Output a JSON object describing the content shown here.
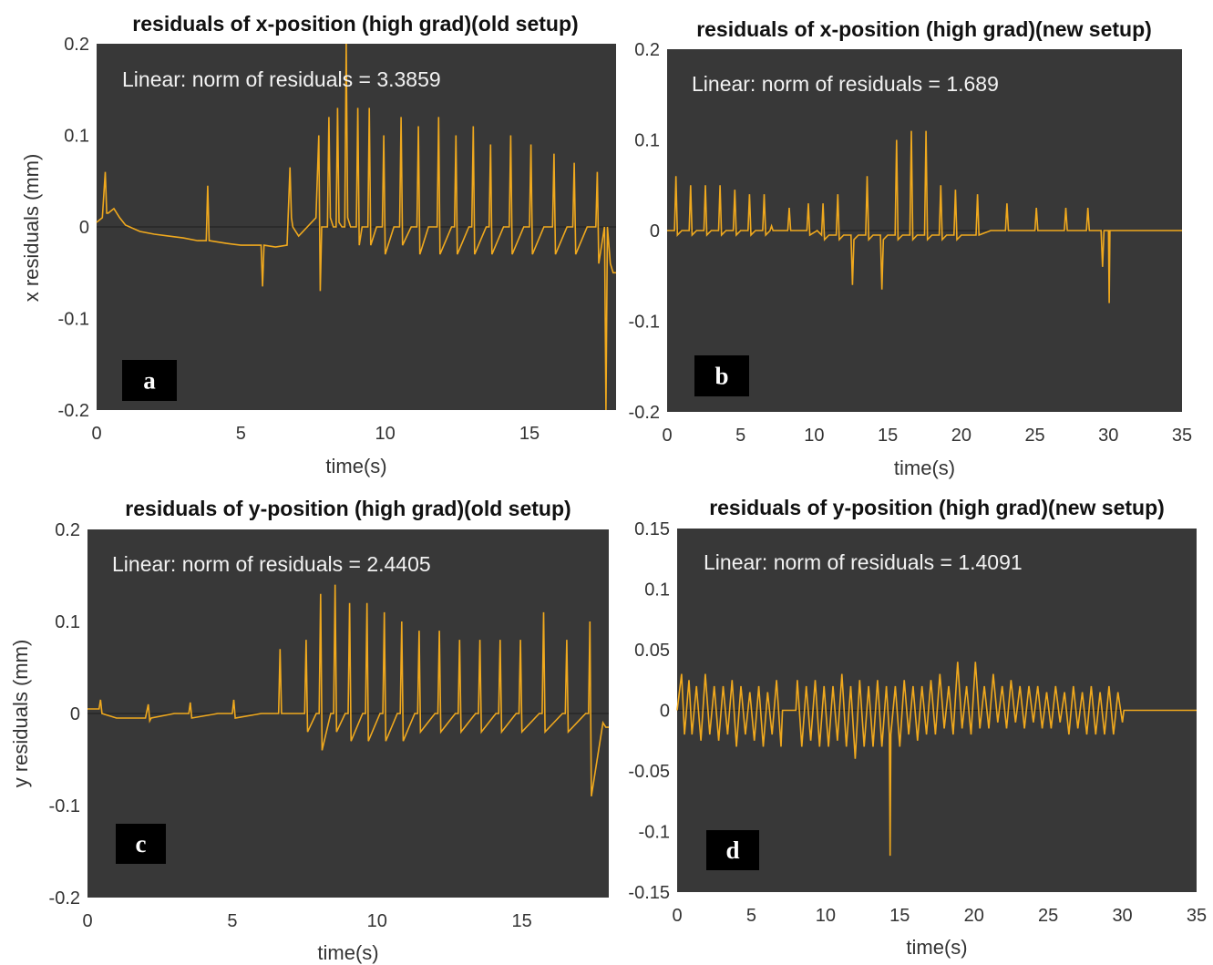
{
  "chart_data": [
    {
      "type": "line",
      "panel": "a",
      "title": "residuals of x-position (high grad)(old setup)",
      "xlabel": "time(s)",
      "ylabel": "x residuals (mm)",
      "annotation": "Linear: norm of residuals = 3.3859",
      "xlim": [
        0,
        18
      ],
      "ylim": [
        -0.2,
        0.2
      ],
      "xticks": [
        0,
        5,
        10,
        15
      ],
      "xtick_labels": [
        "0",
        "5",
        "10",
        "15"
      ],
      "yticks": [
        -0.2,
        -0.1,
        0,
        0.1,
        0.2
      ],
      "ytick_labels": [
        "-0.2",
        "-0.1",
        "0",
        "0.1",
        "0.2"
      ],
      "background": "#383838",
      "line_color": "#f0a91e",
      "series": [
        {
          "x": [
            0,
            0.2,
            0.3,
            0.35,
            0.4,
            0.6,
            0.8,
            1.0,
            1.5,
            2.0,
            2.5,
            3.0,
            3.5,
            3.8,
            3.85,
            3.9,
            4.5,
            5.0,
            5.5,
            5.7,
            5.75,
            5.8,
            6.2,
            6.6,
            6.7,
            6.75,
            6.8,
            7.0,
            7.3,
            7.6,
            7.7,
            7.75,
            7.8,
            7.9,
            8.0,
            8.05,
            8.1,
            8.2,
            8.3,
            8.35,
            8.4,
            8.5,
            8.6,
            8.65,
            8.7,
            8.8,
            9.0,
            9.05,
            9.1,
            9.2,
            9.3,
            9.4,
            9.45,
            9.5,
            9.7,
            9.9,
            9.95,
            10.0,
            10.3,
            10.5,
            10.55,
            10.6,
            10.9,
            11.1,
            11.15,
            11.2,
            11.5,
            11.8,
            11.85,
            11.9,
            12.3,
            12.4,
            12.45,
            12.5,
            12.9,
            13.0,
            13.05,
            13.1,
            13.5,
            13.6,
            13.65,
            13.7,
            14.1,
            14.3,
            14.35,
            14.4,
            14.8,
            15.0,
            15.05,
            15.1,
            15.5,
            15.8,
            15.85,
            15.9,
            16.3,
            16.5,
            16.55,
            16.6,
            17.0,
            17.3,
            17.35,
            17.4,
            17.6,
            17.65,
            17.7,
            17.8,
            17.9,
            18.0
          ],
          "y": [
            0.005,
            0.01,
            0.06,
            0.015,
            0.015,
            0.02,
            0.01,
            0.002,
            -0.005,
            -0.008,
            -0.01,
            -0.012,
            -0.015,
            -0.015,
            0.045,
            -0.015,
            -0.018,
            -0.02,
            -0.02,
            -0.02,
            -0.065,
            -0.02,
            -0.022,
            -0.02,
            0.065,
            0.01,
            0.0,
            -0.01,
            0.0,
            0.01,
            0.1,
            -0.07,
            0.0,
            0.0,
            0.0,
            0.12,
            0.01,
            0.0,
            0.0,
            0.13,
            0.005,
            0.0,
            0.0,
            0.2,
            0.01,
            0.0,
            0.0,
            0.13,
            -0.02,
            0.0,
            0.0,
            0.0,
            0.13,
            -0.02,
            0.0,
            0.0,
            0.1,
            -0.03,
            0.0,
            0.0,
            0.12,
            -0.02,
            0.0,
            0.0,
            0.11,
            -0.03,
            0.0,
            0.0,
            0.12,
            -0.03,
            0.0,
            0.0,
            0.1,
            -0.03,
            0.0,
            0.0,
            0.11,
            -0.03,
            0.0,
            0.0,
            0.09,
            -0.03,
            0.0,
            0.0,
            0.1,
            -0.03,
            0.0,
            0.0,
            0.09,
            -0.03,
            0.0,
            0.0,
            0.08,
            -0.03,
            0.0,
            0.0,
            0.07,
            -0.03,
            0.0,
            0.0,
            0.06,
            -0.04,
            0.0,
            -0.2,
            0.0,
            -0.04,
            -0.05,
            -0.05
          ]
        }
      ]
    },
    {
      "type": "line",
      "panel": "b",
      "title": "residuals of x-position (high grad)(new setup)",
      "xlabel": "time(s)",
      "ylabel": "",
      "annotation": "Linear: norm of residuals = 1.689",
      "xlim": [
        0,
        35
      ],
      "ylim": [
        -0.2,
        0.2
      ],
      "xticks": [
        0,
        5,
        10,
        15,
        20,
        25,
        30,
        35
      ],
      "xtick_labels": [
        "0",
        "5",
        "10",
        "15",
        "20",
        "25",
        "30",
        "35"
      ],
      "yticks": [
        -0.2,
        -0.1,
        0,
        0.1,
        0.2
      ],
      "ytick_labels": [
        "-0.2",
        "-0.1",
        "0",
        "0.1",
        "0.2"
      ],
      "background": "#383838",
      "line_color": "#f0a91e",
      "series": [
        {
          "x": [
            0,
            0.5,
            0.6,
            0.7,
            1.0,
            1.5,
            1.6,
            1.7,
            2.0,
            2.5,
            2.6,
            2.7,
            3.0,
            3.5,
            3.6,
            3.7,
            4.0,
            4.5,
            4.6,
            4.7,
            5.0,
            5.5,
            5.6,
            5.7,
            6.0,
            6.5,
            6.6,
            6.7,
            7.0,
            7.1,
            7.2,
            8.2,
            8.3,
            8.4,
            8.8,
            9.0,
            9.5,
            9.6,
            9.7,
            10.2,
            10.5,
            10.6,
            10.7,
            11.0,
            11.5,
            11.6,
            11.7,
            12.0,
            12.5,
            12.6,
            12.7,
            13.0,
            13.5,
            13.6,
            13.7,
            14.0,
            14.5,
            14.6,
            14.7,
            15.0,
            15.5,
            15.6,
            15.7,
            16.0,
            16.5,
            16.6,
            16.7,
            17.0,
            17.5,
            17.6,
            17.7,
            18.0,
            18.5,
            18.6,
            18.7,
            19.0,
            19.5,
            19.6,
            19.7,
            20.0,
            21.0,
            21.1,
            21.2,
            22.0,
            23.0,
            23.1,
            23.2,
            24.0,
            25.0,
            25.1,
            25.2,
            26.0,
            27.0,
            27.1,
            27.2,
            28.0,
            28.5,
            28.6,
            28.7,
            29.0,
            29.5,
            29.6,
            29.7,
            30.0,
            30.05,
            30.1,
            30.2,
            35.0
          ],
          "y": [
            0.0,
            0.0,
            0.06,
            -0.005,
            0.0,
            0.0,
            0.05,
            -0.005,
            0.0,
            0.0,
            0.05,
            -0.005,
            0.0,
            0.0,
            0.05,
            -0.005,
            0.0,
            0.0,
            0.045,
            -0.005,
            0.0,
            0.0,
            0.04,
            -0.005,
            0.0,
            0.0,
            0.04,
            -0.005,
            0.0,
            0.005,
            0.0,
            0.0,
            0.025,
            0.0,
            0.0,
            0.0,
            0.0,
            0.03,
            -0.005,
            0.0,
            -0.005,
            0.03,
            -0.01,
            -0.005,
            -0.005,
            0.04,
            -0.01,
            -0.005,
            -0.005,
            -0.06,
            -0.01,
            -0.005,
            -0.005,
            0.06,
            -0.01,
            -0.005,
            -0.005,
            -0.065,
            -0.01,
            -0.005,
            -0.005,
            0.1,
            -0.01,
            -0.005,
            -0.005,
            0.11,
            -0.01,
            -0.005,
            -0.005,
            0.11,
            -0.01,
            -0.005,
            -0.005,
            0.05,
            -0.01,
            -0.005,
            -0.005,
            0.045,
            -0.01,
            -0.005,
            -0.005,
            0.04,
            -0.005,
            0.0,
            0.0,
            0.03,
            0.0,
            0.0,
            0.0,
            0.025,
            0.0,
            0.0,
            0.0,
            0.025,
            0.0,
            0.0,
            0.0,
            0.025,
            0.0,
            0.0,
            0.0,
            -0.04,
            0.0,
            0.0,
            -0.08,
            0.0,
            0.0,
            0.0
          ]
        }
      ]
    },
    {
      "type": "line",
      "panel": "c",
      "title": "residuals of y-position (high grad)(old setup)",
      "xlabel": "time(s)",
      "ylabel": "y residuals (mm)",
      "annotation": "Linear: norm of residuals = 2.4405",
      "xlim": [
        0,
        18
      ],
      "ylim": [
        -0.2,
        0.2
      ],
      "xticks": [
        0,
        5,
        10,
        15
      ],
      "xtick_labels": [
        "0",
        "5",
        "10",
        "15"
      ],
      "yticks": [
        -0.2,
        -0.1,
        0,
        0.1,
        0.2
      ],
      "ytick_labels": [
        "-0.2",
        "-0.1",
        "0",
        "0.1",
        "0.2"
      ],
      "background": "#383838",
      "line_color": "#f0a91e",
      "series": [
        {
          "x": [
            0,
            0.4,
            0.45,
            0.5,
            1.0,
            1.5,
            2.0,
            2.1,
            2.15,
            2.2,
            3.0,
            3.5,
            3.55,
            3.6,
            4.5,
            5.0,
            5.05,
            5.1,
            6.0,
            6.5,
            6.6,
            6.65,
            6.7,
            7.2,
            7.5,
            7.55,
            7.6,
            7.9,
            8.0,
            8.05,
            8.1,
            8.4,
            8.5,
            8.55,
            8.6,
            8.9,
            9.0,
            9.05,
            9.1,
            9.5,
            9.6,
            9.65,
            9.7,
            10.1,
            10.2,
            10.25,
            10.3,
            10.7,
            10.8,
            10.85,
            10.9,
            11.3,
            11.4,
            11.45,
            11.5,
            12.0,
            12.1,
            12.15,
            12.2,
            12.7,
            12.8,
            12.85,
            12.9,
            13.4,
            13.5,
            13.55,
            13.6,
            14.1,
            14.2,
            14.25,
            14.3,
            14.8,
            14.9,
            14.95,
            15.0,
            15.6,
            15.7,
            15.75,
            15.8,
            16.4,
            16.5,
            16.55,
            16.6,
            17.2,
            17.3,
            17.35,
            17.4,
            17.8,
            17.9,
            18.0
          ],
          "y": [
            0.005,
            0.005,
            0.015,
            0.0,
            -0.005,
            -0.005,
            -0.005,
            0.01,
            -0.008,
            -0.005,
            0.0,
            0.0,
            0.012,
            -0.005,
            0.0,
            0.0,
            0.015,
            -0.005,
            0.0,
            0.0,
            0.0,
            0.07,
            0.0,
            0.0,
            0.0,
            0.08,
            -0.02,
            0.0,
            0.0,
            0.13,
            -0.04,
            0.0,
            0.0,
            0.14,
            -0.02,
            0.0,
            0.0,
            0.12,
            -0.03,
            0.0,
            0.0,
            0.12,
            -0.03,
            0.0,
            0.0,
            0.11,
            -0.03,
            0.0,
            0.0,
            0.1,
            -0.03,
            0.0,
            0.0,
            0.09,
            -0.02,
            0.0,
            0.0,
            0.09,
            -0.02,
            0.0,
            0.0,
            0.08,
            -0.02,
            0.0,
            0.0,
            0.08,
            -0.02,
            0.0,
            0.0,
            0.08,
            -0.02,
            0.0,
            0.0,
            0.08,
            -0.02,
            0.0,
            0.0,
            0.11,
            -0.02,
            0.0,
            0.0,
            0.08,
            -0.02,
            0.0,
            0.0,
            0.1,
            -0.09,
            -0.01,
            -0.015,
            -0.015
          ]
        }
      ]
    },
    {
      "type": "line",
      "panel": "d",
      "title": "residuals of y-position (high grad)(new setup)",
      "xlabel": "time(s)",
      "ylabel": "",
      "annotation": "Linear: norm of residuals = 1.4091",
      "xlim": [
        0,
        35
      ],
      "ylim": [
        -0.15,
        0.15
      ],
      "xticks": [
        0,
        5,
        10,
        15,
        20,
        25,
        30,
        35
      ],
      "xtick_labels": [
        "0",
        "5",
        "10",
        "15",
        "20",
        "25",
        "30",
        "35"
      ],
      "yticks": [
        -0.15,
        -0.1,
        -0.05,
        0,
        0.05,
        0.1,
        0.15
      ],
      "ytick_labels": [
        "-0.15",
        "-0.1",
        "-0.05",
        "0",
        "0.05",
        "0.1",
        "0.15"
      ],
      "background": "#383838",
      "line_color": "#f0a91e",
      "series": [
        {
          "x": [
            0,
            0.3,
            0.5,
            0.8,
            1.0,
            1.3,
            1.6,
            1.9,
            2.2,
            2.5,
            2.8,
            3.1,
            3.4,
            3.7,
            4.0,
            4.3,
            4.6,
            4.9,
            5.2,
            5.5,
            5.8,
            6.1,
            6.4,
            6.7,
            7.0,
            7.1,
            8.0,
            8.1,
            8.4,
            8.7,
            9.0,
            9.3,
            9.6,
            9.9,
            10.2,
            10.5,
            10.8,
            11.1,
            11.4,
            11.7,
            12.0,
            12.3,
            12.6,
            12.9,
            13.2,
            13.5,
            13.8,
            14.1,
            14.3,
            14.35,
            14.4,
            14.7,
            15.0,
            15.3,
            15.6,
            15.9,
            16.2,
            16.5,
            16.8,
            17.1,
            17.4,
            17.7,
            18.0,
            18.3,
            18.6,
            18.9,
            19.2,
            19.5,
            19.8,
            20.1,
            20.4,
            20.7,
            21.0,
            21.3,
            21.6,
            21.9,
            22.2,
            22.5,
            22.8,
            23.1,
            23.4,
            23.7,
            24.0,
            24.3,
            24.6,
            24.9,
            25.2,
            25.5,
            25.8,
            26.1,
            26.4,
            26.7,
            27.0,
            27.3,
            27.6,
            27.9,
            28.2,
            28.5,
            28.8,
            29.1,
            29.4,
            29.7,
            30.0,
            30.1,
            35.0
          ],
          "y": [
            0.0,
            0.03,
            -0.02,
            0.025,
            -0.02,
            0.02,
            -0.025,
            0.03,
            -0.02,
            0.02,
            -0.025,
            0.02,
            -0.02,
            0.025,
            -0.03,
            0.02,
            -0.02,
            0.015,
            -0.025,
            0.02,
            -0.03,
            0.015,
            -0.02,
            0.025,
            -0.03,
            0.0,
            0.0,
            0.025,
            -0.03,
            0.02,
            -0.025,
            0.025,
            -0.03,
            0.02,
            -0.03,
            0.02,
            -0.025,
            0.03,
            -0.03,
            0.02,
            -0.04,
            0.025,
            -0.03,
            0.02,
            -0.03,
            0.025,
            -0.03,
            0.02,
            -0.02,
            -0.12,
            -0.02,
            0.02,
            -0.03,
            0.025,
            -0.02,
            0.02,
            -0.025,
            0.02,
            -0.02,
            0.025,
            -0.02,
            0.03,
            -0.015,
            0.02,
            -0.02,
            0.04,
            -0.015,
            0.02,
            -0.02,
            0.04,
            -0.015,
            0.02,
            -0.015,
            0.03,
            -0.01,
            0.02,
            -0.015,
            0.025,
            -0.01,
            0.02,
            -0.015,
            0.02,
            -0.01,
            0.02,
            -0.015,
            0.015,
            -0.015,
            0.02,
            -0.01,
            0.015,
            -0.02,
            0.02,
            -0.015,
            0.015,
            -0.02,
            0.02,
            -0.02,
            0.015,
            -0.02,
            0.02,
            -0.02,
            0.015,
            -0.01,
            0.0,
            0.0
          ]
        }
      ]
    }
  ]
}
